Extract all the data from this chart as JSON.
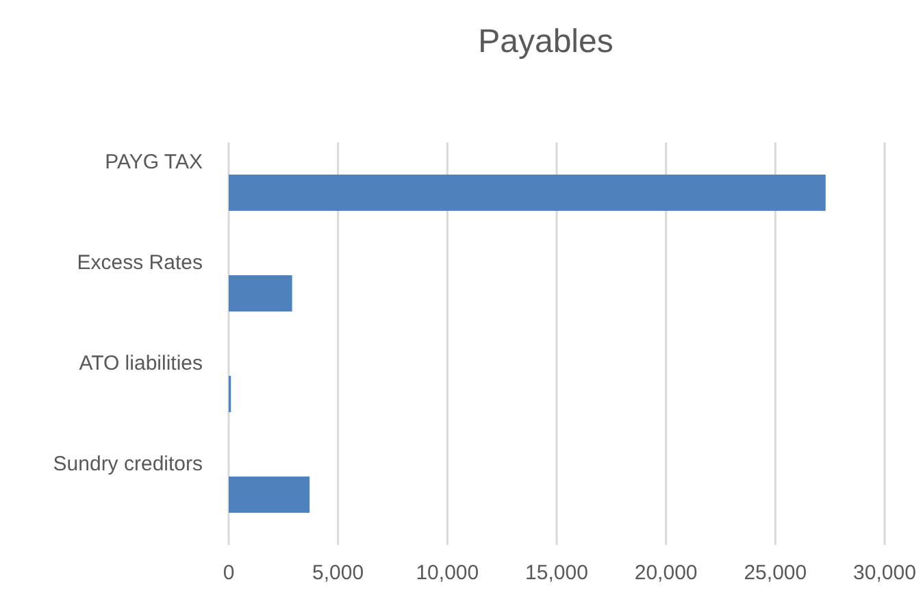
{
  "chart_data": {
    "type": "bar",
    "title": "Payables",
    "orientation": "horizontal",
    "categories": [
      "PAYG TAX",
      "Excess Rates",
      "ATO liabilities",
      "Sundry creditors"
    ],
    "values": [
      27300,
      2900,
      100,
      3700
    ],
    "color": "#4f81bd",
    "xlim": [
      0,
      30000
    ],
    "xticks": [
      {
        "value": 0,
        "label": "0"
      },
      {
        "value": 5000,
        "label": "5,000"
      },
      {
        "value": 10000,
        "label": "10,000"
      },
      {
        "value": 15000,
        "label": "15,000"
      },
      {
        "value": 20000,
        "label": "20,000"
      },
      {
        "value": 25000,
        "label": "25,000"
      },
      {
        "value": 30000,
        "label": "30,000"
      }
    ],
    "grid": "x"
  }
}
